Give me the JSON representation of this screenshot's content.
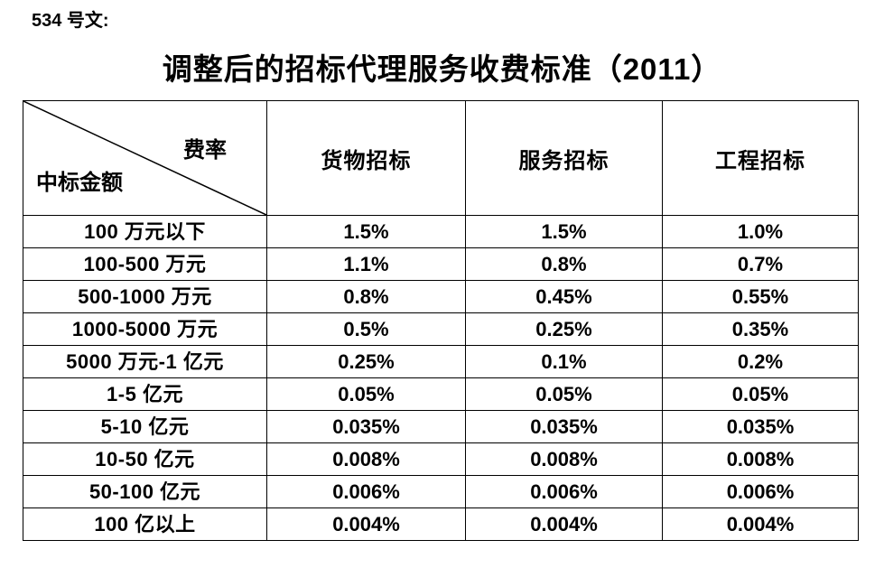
{
  "page": {
    "doc_label": "534 号文:",
    "title": "调整后的招标代理服务收费标准（2011）"
  },
  "table": {
    "corner_top_right": "费率",
    "corner_bottom_left": "中标金额",
    "columns": [
      "货物招标",
      "服务招标",
      "工程招标"
    ],
    "rows": [
      {
        "amount": "100 万元以下",
        "values": [
          "1.5%",
          "1.5%",
          "1.0%"
        ]
      },
      {
        "amount": "100-500 万元",
        "values": [
          "1.1%",
          "0.8%",
          "0.7%"
        ]
      },
      {
        "amount": "500-1000 万元",
        "values": [
          "0.8%",
          "0.45%",
          "0.55%"
        ]
      },
      {
        "amount": "1000-5000 万元",
        "values": [
          "0.5%",
          "0.25%",
          "0.35%"
        ]
      },
      {
        "amount": "5000 万元-1 亿元",
        "values": [
          "0.25%",
          "0.1%",
          "0.2%"
        ]
      },
      {
        "amount": "1-5 亿元",
        "values": [
          "0.05%",
          "0.05%",
          "0.05%"
        ]
      },
      {
        "amount": "5-10 亿元",
        "values": [
          "0.035%",
          "0.035%",
          "0.035%"
        ]
      },
      {
        "amount": "10-50 亿元",
        "values": [
          "0.008%",
          "0.008%",
          "0.008%"
        ]
      },
      {
        "amount": "50-100 亿元",
        "values": [
          "0.006%",
          "0.006%",
          "0.006%"
        ]
      },
      {
        "amount": "100 亿以上",
        "values": [
          "0.004%",
          "0.004%",
          "0.004%"
        ]
      }
    ]
  }
}
